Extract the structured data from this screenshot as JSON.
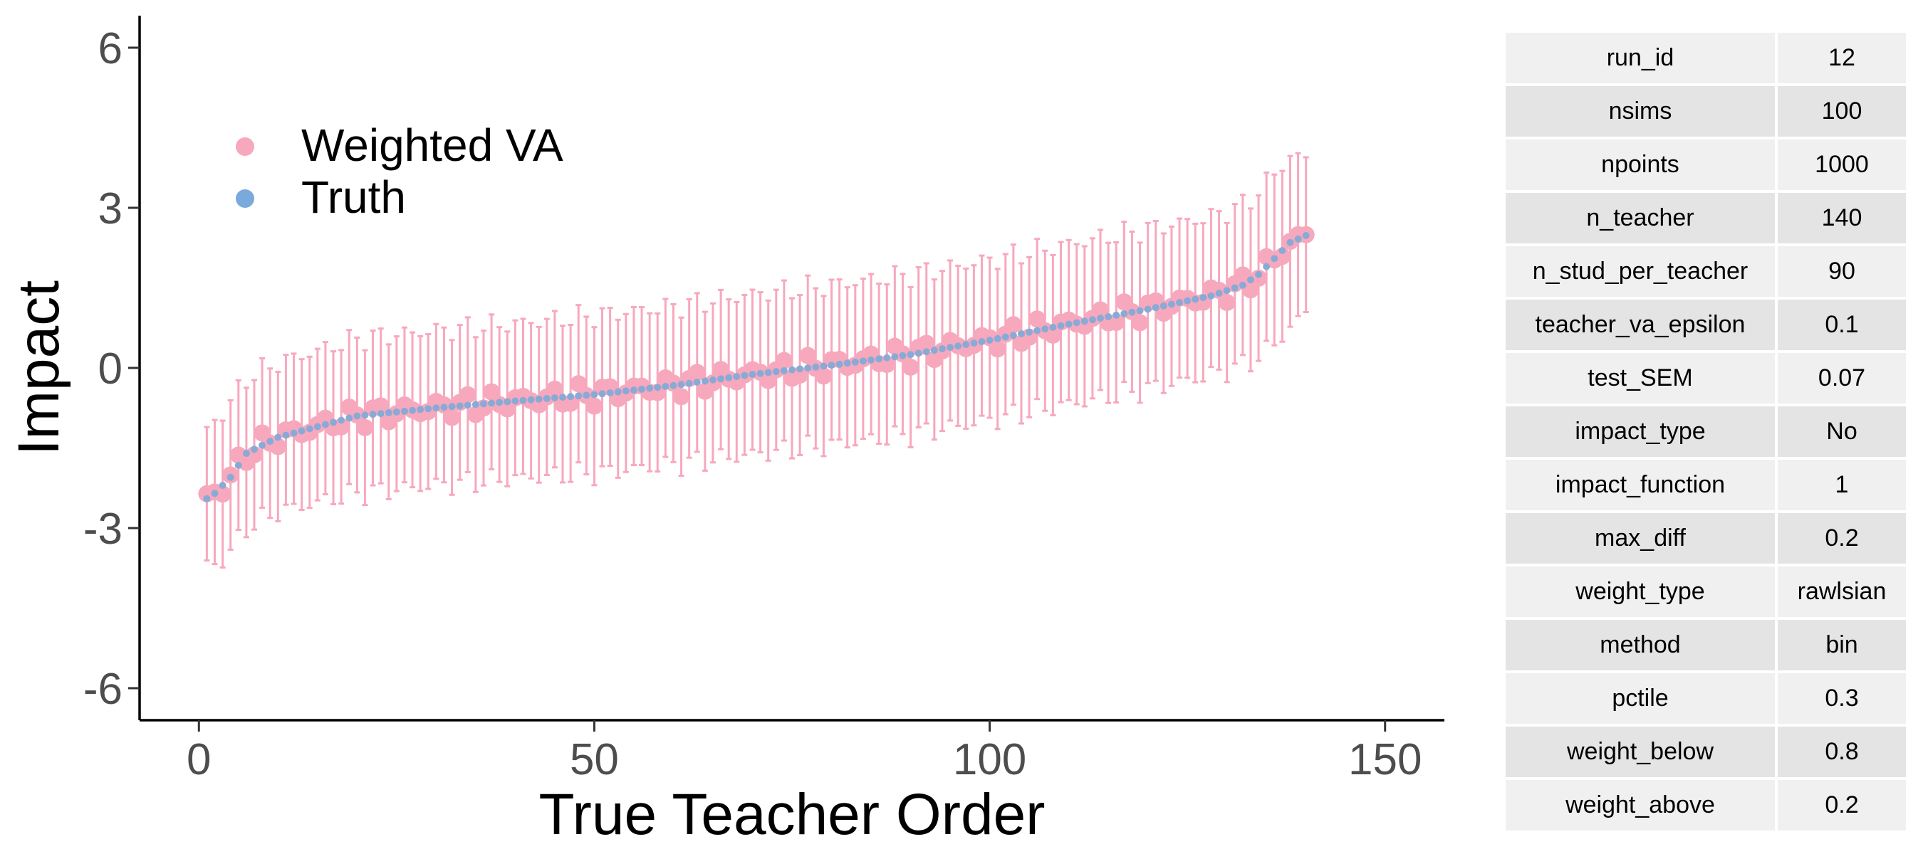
{
  "chart_data": {
    "type": "scatter",
    "title": "",
    "xlabel": "True Teacher Order",
    "ylabel": "Impact",
    "xlim": [
      -7.5,
      157.5
    ],
    "ylim": [
      -6.6,
      6.6
    ],
    "x_ticks": [
      0,
      50,
      100,
      150
    ],
    "y_ticks": [
      6,
      3,
      0,
      -3,
      -6
    ],
    "grid": false,
    "legend_position": "top-left",
    "legend": [
      {
        "name": "Weighted VA",
        "color": "#f7a8bd"
      },
      {
        "name": "Truth",
        "color": "#7aa9dc"
      }
    ],
    "anchors": {
      "x": [
        1,
        2,
        4,
        6,
        10,
        15,
        20,
        30,
        40,
        50,
        60,
        70,
        80,
        90,
        100,
        110,
        120,
        128,
        132,
        134,
        136,
        138,
        140
      ],
      "truth": [
        -2.45,
        -2.35,
        -2.05,
        -1.6,
        -1.3,
        -1.1,
        -0.9,
        -0.75,
        -0.62,
        -0.5,
        -0.33,
        -0.12,
        0.05,
        0.25,
        0.52,
        0.82,
        1.1,
        1.35,
        1.55,
        1.75,
        2.05,
        2.35,
        2.48
      ],
      "half_width": [
        1.25,
        1.35,
        1.4,
        1.4,
        1.4,
        1.42,
        1.45,
        1.45,
        1.45,
        1.48,
        1.48,
        1.5,
        1.5,
        1.5,
        1.5,
        1.5,
        1.5,
        1.48,
        1.5,
        1.55,
        1.6,
        1.6,
        1.45
      ]
    },
    "n_points": 140
  },
  "table": {
    "rows": [
      {
        "key": "run_id",
        "value": "12"
      },
      {
        "key": "nsims",
        "value": "100"
      },
      {
        "key": "npoints",
        "value": "1000"
      },
      {
        "key": "n_teacher",
        "value": "140"
      },
      {
        "key": "n_stud_per_teacher",
        "value": "90"
      },
      {
        "key": "teacher_va_epsilon",
        "value": "0.1"
      },
      {
        "key": "test_SEM",
        "value": "0.07"
      },
      {
        "key": "impact_type",
        "value": "No"
      },
      {
        "key": "impact_function",
        "value": "1"
      },
      {
        "key": "max_diff",
        "value": "0.2"
      },
      {
        "key": "weight_type",
        "value": "rawlsian"
      },
      {
        "key": "method",
        "value": "bin"
      },
      {
        "key": "pctile",
        "value": "0.3"
      },
      {
        "key": "weight_below",
        "value": "0.8"
      },
      {
        "key": "weight_above",
        "value": "0.2"
      }
    ]
  }
}
